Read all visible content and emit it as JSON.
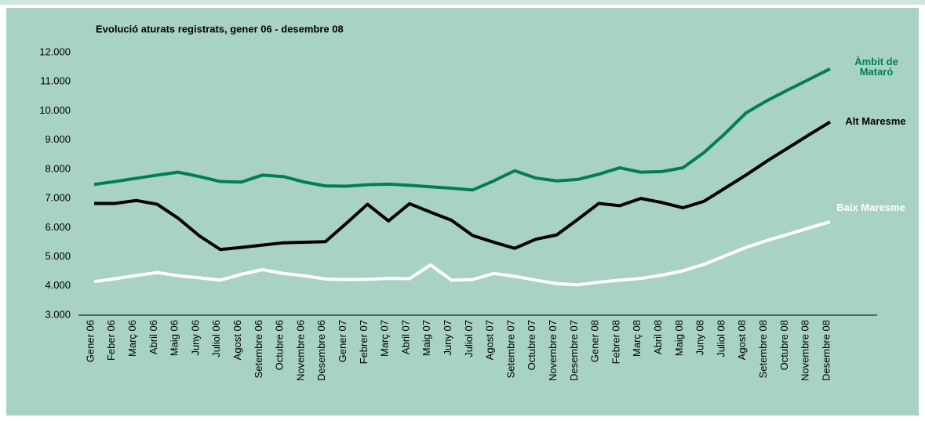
{
  "chart_data": {
    "type": "line",
    "title": "Evolució aturats registrats, gener 06 - desembre 08",
    "categories": [
      "Gener 06",
      "Feber 06",
      "Març 06",
      "Abril 06",
      "Maig 06",
      "Juny 06",
      "Juliol 06",
      "Agost 06",
      "Setembre 06",
      "Octubre 06",
      "Novembre 06",
      "Desembre 06",
      "Gener 07",
      "Febrer 07",
      "Març 07",
      "Abril 07",
      "Maig 07",
      "Juny 07",
      "Juliol 07",
      "Agost 07",
      "Setembre 07",
      "Octubre 07",
      "Novembre 07",
      "Desembre 07",
      "Gener 08",
      "Febrer 08",
      "Març 08",
      "Abril 08",
      "Maig 08",
      "Juny 08",
      "Juliol 08",
      "Agost 08",
      "Setembre 08",
      "Octubre 08",
      "Novembre 08",
      "Desembre 08"
    ],
    "series": [
      {
        "name": "Àmbit de Mataró",
        "color": "#00804f",
        "values": [
          7480,
          7580,
          7690,
          7800,
          7900,
          7750,
          7580,
          7560,
          7800,
          7750,
          7560,
          7430,
          7420,
          7470,
          7490,
          7450,
          7400,
          7350,
          7290,
          7600,
          7950,
          7700,
          7600,
          7650,
          7830,
          8050,
          7900,
          7920,
          8050,
          8570,
          9220,
          9930,
          10350,
          10720,
          11080,
          11440
        ]
      },
      {
        "name": "Alt Maresme",
        "color": "#000000",
        "values": [
          6830,
          6830,
          6930,
          6800,
          6320,
          5720,
          5250,
          5320,
          5400,
          5480,
          5500,
          5520,
          6150,
          6800,
          6230,
          6820,
          6530,
          6250,
          5730,
          5500,
          5290,
          5600,
          5750,
          6280,
          6830,
          6750,
          7000,
          6860,
          6680,
          6900,
          7350,
          7800,
          8280,
          8730,
          9180,
          9620
        ]
      },
      {
        "name": "Baix Maresme",
        "color": "#ffffff",
        "values": [
          4150,
          4250,
          4360,
          4460,
          4350,
          4280,
          4200,
          4400,
          4560,
          4430,
          4350,
          4240,
          4220,
          4230,
          4260,
          4250,
          4720,
          4200,
          4220,
          4430,
          4330,
          4200,
          4080,
          4040,
          4130,
          4200,
          4260,
          4370,
          4520,
          4740,
          5030,
          5320,
          5560,
          5770,
          5990,
          6200
        ]
      }
    ],
    "ylim": [
      3000,
      12000
    ],
    "yticks": [
      {
        "value": 3000,
        "label": "3.000"
      },
      {
        "value": 4000,
        "label": "4.000"
      },
      {
        "value": 5000,
        "label": "5.000"
      },
      {
        "value": 6000,
        "label": "6.000"
      },
      {
        "value": 7000,
        "label": "7.000"
      },
      {
        "value": 8000,
        "label": "8.000"
      },
      {
        "value": 9000,
        "label": "9.000"
      },
      {
        "value": 10000,
        "label": "10.000"
      },
      {
        "value": 11000,
        "label": "11.000"
      },
      {
        "value": 12000,
        "label": "12.000"
      }
    ],
    "grid": false
  }
}
